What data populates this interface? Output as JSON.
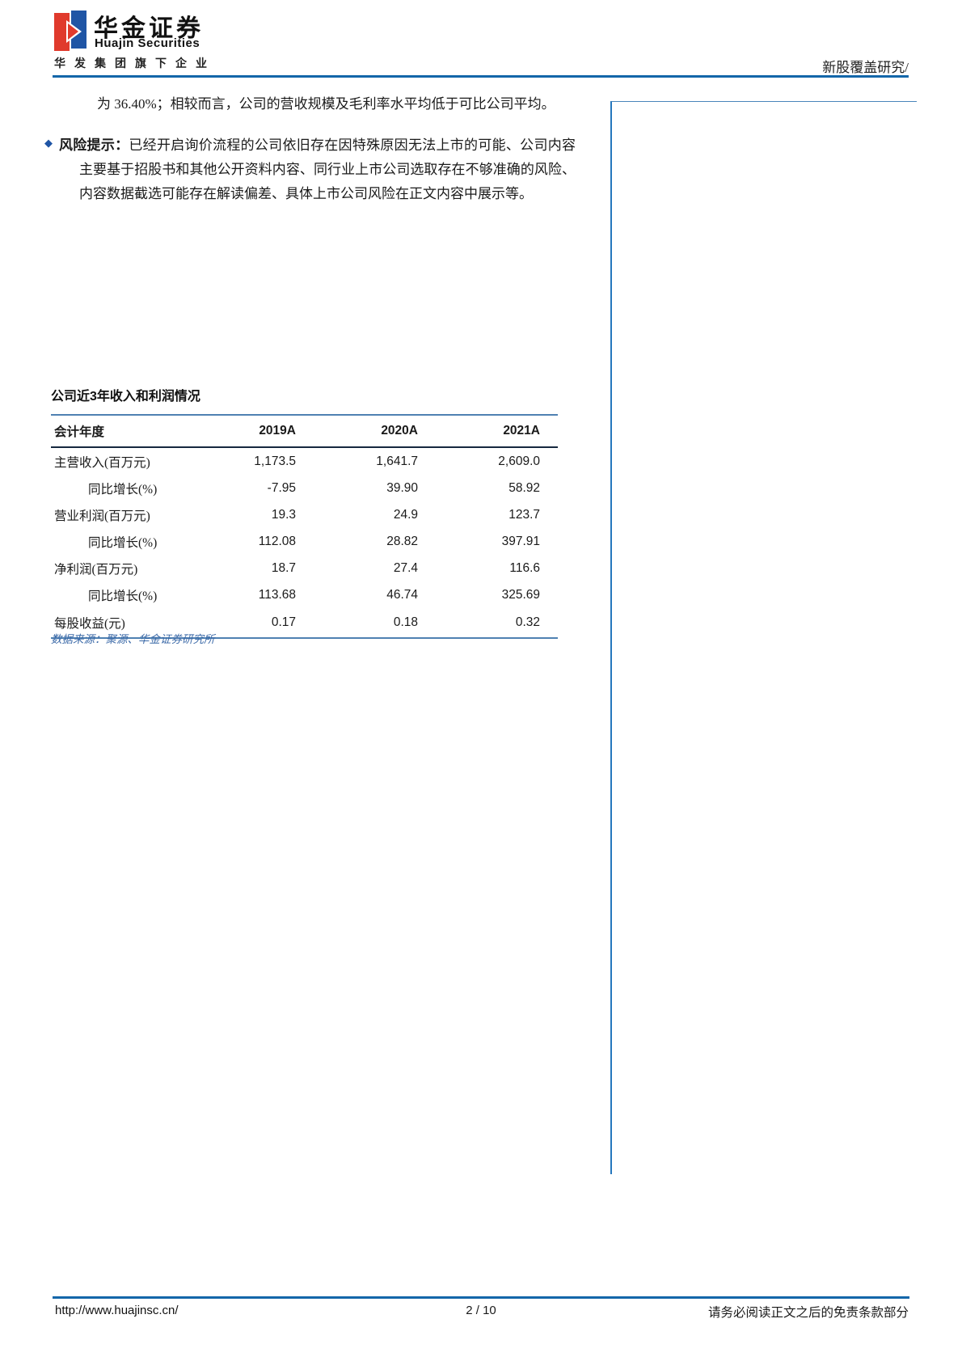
{
  "header": {
    "brand_cn": "华金证券",
    "brand_en": "Huajin Securities",
    "brand_sub": "华发集团旗下企业",
    "report_type": "新股覆盖研究/"
  },
  "body": {
    "bullet": "◆",
    "paragraph": "为 36.40%；相较而言，公司的营收规模及毛利率水平均低于可比公司平均。",
    "risk_label": "风险提示：",
    "risk_text": "已经开启询价流程的公司依旧存在因特殊原因无法上市的可能、公司内容主要基于招股书和其他公开资料内容、同行业上市公司选取存在不够准确的风险、内容数据截选可能存在解读偏差、具体上市公司风险在正文内容中展示等。"
  },
  "table": {
    "title": "公司近3年收入和利润情况",
    "headers": [
      "会计年度",
      "2019A",
      "2020A",
      "2021A"
    ],
    "rows": [
      {
        "label": "主营收入(百万元)",
        "indent": false,
        "values": [
          "1,173.5",
          "1,641.7",
          "2,609.0"
        ]
      },
      {
        "label": "同比增长(%)",
        "indent": true,
        "values": [
          "-7.95",
          "39.90",
          "58.92"
        ]
      },
      {
        "label": "营业利润(百万元)",
        "indent": false,
        "values": [
          "19.3",
          "24.9",
          "123.7"
        ]
      },
      {
        "label": "同比增长(%)",
        "indent": true,
        "values": [
          "112.08",
          "28.82",
          "397.91"
        ]
      },
      {
        "label": "净利润(百万元)",
        "indent": false,
        "values": [
          "18.7",
          "27.4",
          "116.6"
        ]
      },
      {
        "label": "同比增长(%)",
        "indent": true,
        "values": [
          "113.68",
          "46.74",
          "325.69"
        ]
      },
      {
        "label": "每股收益(元)",
        "indent": false,
        "values": [
          "0.17",
          "0.18",
          "0.32"
        ]
      }
    ],
    "source": "数据来源：聚源、华金证券研究所"
  },
  "footer": {
    "url": "http://www.huajinsc.cn/",
    "page_info": "2 / 10",
    "disclaimer": "请务必阅读正文之后的免责条款部分"
  },
  "colors": {
    "accent_rule": "#1366a9",
    "side_line": "#2577bd",
    "side_top_line": "#4a86ba",
    "table_blue_border": "#4f81b2",
    "table_header_underline": "#16283f",
    "bullet_blue": "#1f55a5",
    "source_blue": "#3c6aa8",
    "logo_red": "#e03a2c",
    "logo_blue": "#1f55a5"
  }
}
